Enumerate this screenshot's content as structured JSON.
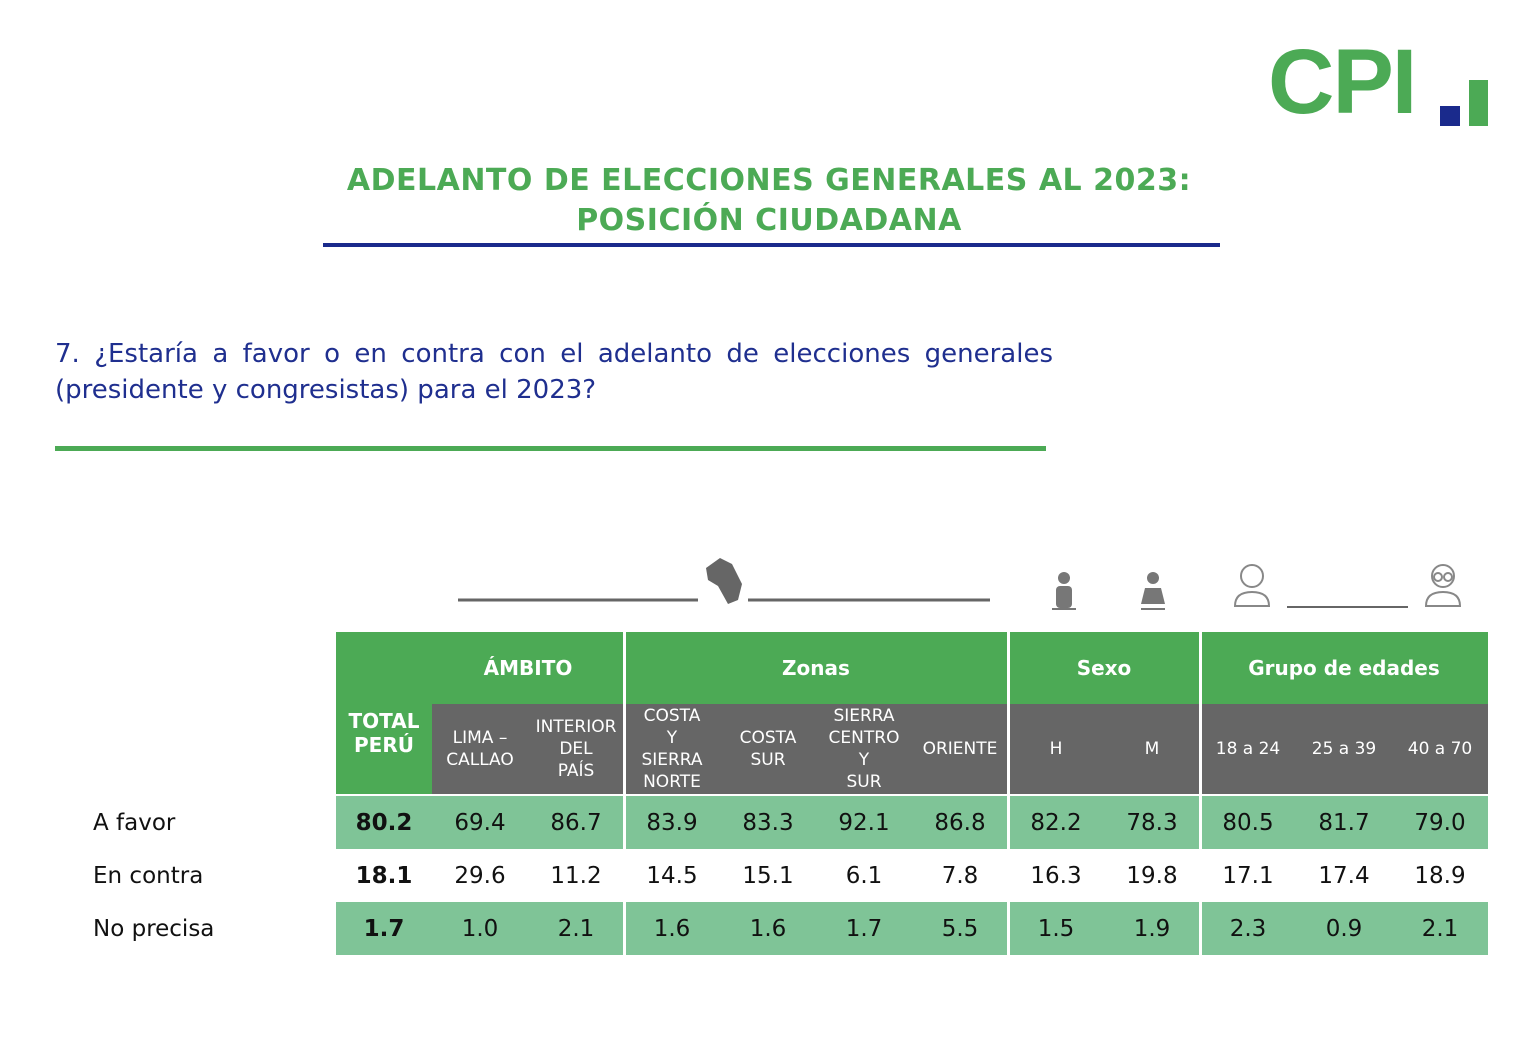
{
  "logo": "CPI",
  "title": [
    "ADELANTO DE ELECCIONES GENERALES AL 2023:",
    "POSICIÓN CIUDADANA"
  ],
  "question": "7. ¿Estaría a favor o en contra con el adelanto de elecciones generales (presidente y congresistas) para el 2023?",
  "table": {
    "total_header": [
      "TOTAL",
      "PERÚ"
    ],
    "groups": [
      {
        "name": "ÁMBITO",
        "columns": [
          [
            "LIMA –",
            "CALLAO"
          ],
          [
            "INTERIOR",
            "DEL",
            "PAÍS"
          ]
        ]
      },
      {
        "name": "Zonas",
        "columns": [
          [
            "COSTA",
            "Y",
            "SIERRA",
            "NORTE"
          ],
          [
            "COSTA",
            "SUR"
          ],
          [
            "SIERRA",
            "CENTRO",
            "Y",
            "SUR"
          ],
          [
            "ORIENTE"
          ]
        ]
      },
      {
        "name": "Sexo",
        "columns": [
          [
            "H"
          ],
          [
            "M"
          ]
        ]
      },
      {
        "name": "Grupo de edades",
        "columns": [
          [
            "18 a 24"
          ],
          [
            "25 a 39"
          ],
          [
            "40 a 70"
          ]
        ]
      }
    ],
    "rows": [
      {
        "label": "A favor",
        "total": "80.2",
        "values": [
          "69.4",
          "86.7",
          "83.9",
          "83.3",
          "92.1",
          "86.8",
          "82.2",
          "78.3",
          "80.5",
          "81.7",
          "79.0"
        ]
      },
      {
        "label": "En contra",
        "total": "18.1",
        "values": [
          "29.6",
          "11.2",
          "14.5",
          "15.1",
          "6.1",
          "7.8",
          "16.3",
          "19.8",
          "17.1",
          "17.4",
          "18.9"
        ]
      },
      {
        "label": "No precisa",
        "total": "1.7",
        "values": [
          "1.0",
          "2.1",
          "1.6",
          "1.6",
          "1.7",
          "5.5",
          "1.5",
          "1.9",
          "2.3",
          "0.9",
          "2.1"
        ]
      }
    ]
  }
}
